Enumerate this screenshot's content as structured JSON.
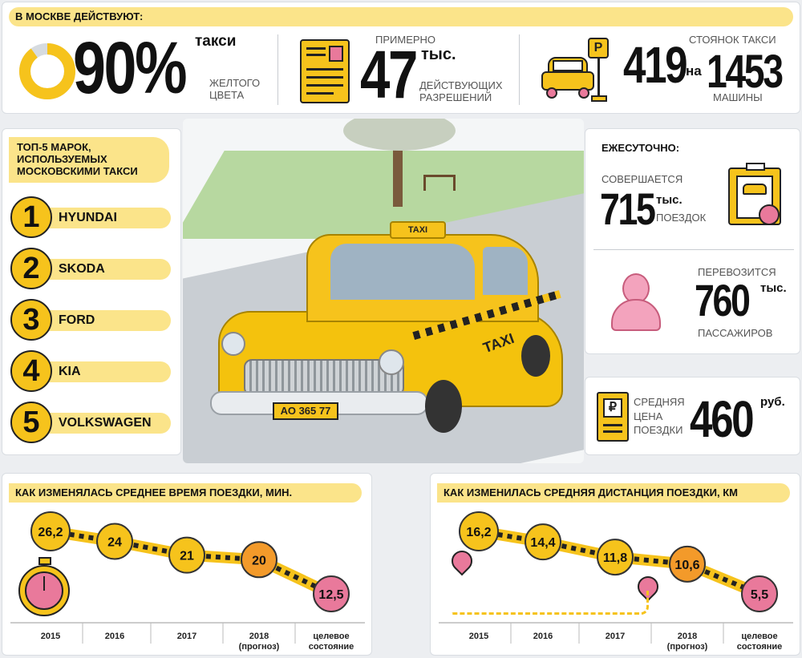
{
  "top": {
    "heading": "В МОСКВЕ ДЕЙСТВУЮТ:",
    "yellow_share": {
      "value": "90%",
      "label_top": "такси",
      "label_bottom": "ЖЕЛТОГО ЦВЕТА",
      "fraction": 0.9
    },
    "permits": {
      "label_top": "ПРИМЕРНО",
      "value": "47",
      "unit": "тыс.",
      "label_bottom": "ДЕЙСТВУЮЩИХ РАЗРЕШЕНИЙ"
    },
    "parking": {
      "value": "419",
      "label_top": "СТОЯНОК ТАКСИ",
      "on": "на",
      "cars": "1453",
      "label_bottom": "МАШИНЫ",
      "sign": "P"
    }
  },
  "brands": {
    "heading": "ТОП-5 МАРОК, ИСПОЛЬЗУЕМЫХ МОСКОВСКИМИ ТАКСИ",
    "items": [
      {
        "rank": "1",
        "name": "HYUNDAI"
      },
      {
        "rank": "2",
        "name": "SKODA"
      },
      {
        "rank": "3",
        "name": "FORD"
      },
      {
        "rank": "4",
        "name": "KIA"
      },
      {
        "rank": "5",
        "name": "VOLKSWAGEN"
      }
    ]
  },
  "car": {
    "roof_sign": "TAXI",
    "door_sign": "TAXI",
    "plate": "АО 365 77"
  },
  "daily": {
    "heading": "ЕЖЕСУТОЧНО:",
    "trips": {
      "label_top": "СОВЕРШАЕТСЯ",
      "value": "715",
      "unit": "тыс.",
      "label_bottom": "ПОЕЗДОК"
    },
    "passengers": {
      "label_top": "ПЕРЕВОЗИТСЯ",
      "value": "760",
      "unit": "тыс.",
      "label_bottom": "ПАССАЖИРОВ"
    },
    "price": {
      "label": "СРЕДНЯЯ ЦЕНА ПОЕЗДКИ",
      "value": "460",
      "unit": "руб.",
      "currency_sign": "₽"
    }
  },
  "chart_data": [
    {
      "type": "line",
      "title": "КАК ИЗМЕНЯЛАСЬ СРЕДНЕЕ ВРЕМЯ ПОЕЗДКИ, МИН.",
      "categories": [
        "2015",
        "2016",
        "2017",
        "2018 (прогноз)",
        "целевое состояние"
      ],
      "values": [
        26.2,
        24,
        21,
        20,
        12.5
      ],
      "labels": [
        "26,2",
        "24",
        "21",
        "20",
        "12,5"
      ]
    },
    {
      "type": "line",
      "title": "КАК ИЗМЕНИЛАСЬ СРЕДНЯЯ ДИСТАНЦИЯ ПОЕЗДКИ, КМ",
      "categories": [
        "2015",
        "2016",
        "2017",
        "2018 (прогноз)",
        "целевое состояние"
      ],
      "values": [
        16.2,
        14.4,
        11.8,
        10.6,
        5.5
      ],
      "labels": [
        "16,2",
        "14,4",
        "11,8",
        "10,6",
        "5,5"
      ]
    }
  ],
  "colors": {
    "yellow": "#f6c31c",
    "light_yellow": "#fbe48a",
    "orange": "#f39a2a",
    "pink": "#e9799b",
    "dark": "#222222"
  }
}
